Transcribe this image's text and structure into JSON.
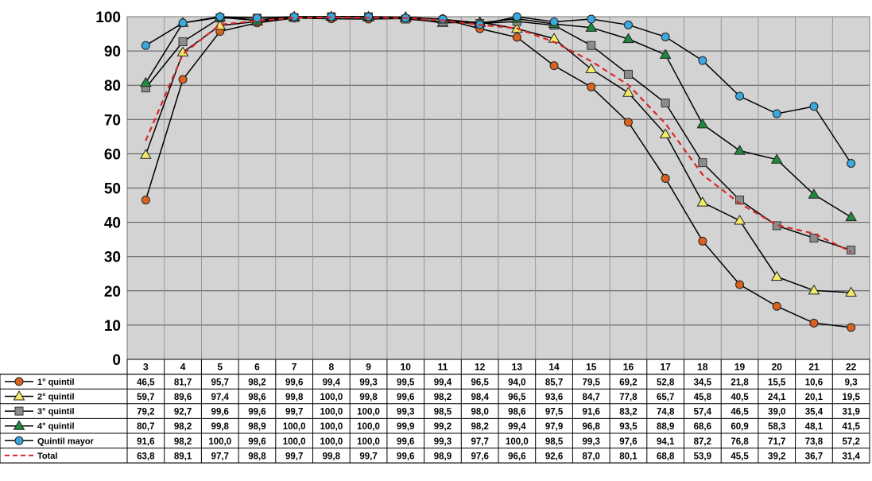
{
  "chart_data": {
    "type": "line",
    "title": "",
    "xlabel": "",
    "ylabel": "",
    "ylim": [
      0,
      100
    ],
    "yticks": [
      0,
      10,
      20,
      30,
      40,
      50,
      60,
      70,
      80,
      90,
      100
    ],
    "grid": true,
    "legend_placement": "bottom-left data table",
    "categories": [
      "3",
      "4",
      "5",
      "6",
      "7",
      "8",
      "9",
      "10",
      "11",
      "12",
      "13",
      "14",
      "15",
      "16",
      "17",
      "18",
      "19",
      "20",
      "21",
      "22"
    ],
    "series": [
      {
        "name": "1° quintil",
        "marker": "circle",
        "color": "#d9621f",
        "values": [
          46.5,
          81.7,
          95.7,
          98.2,
          99.6,
          99.4,
          99.3,
          99.5,
          99.4,
          96.5,
          94.0,
          85.7,
          79.5,
          69.2,
          52.8,
          34.5,
          21.8,
          15.5,
          10.6,
          9.3
        ],
        "labels": [
          "46,5",
          "81,7",
          "95,7",
          "98,2",
          "99,6",
          "99,4",
          "99,3",
          "99,5",
          "99,4",
          "96,5",
          "94,0",
          "85,7",
          "79,5",
          "69,2",
          "52,8",
          "34,5",
          "21,8",
          "15,5",
          "10,6",
          "9,3"
        ]
      },
      {
        "name": "2° quintil",
        "marker": "triangle",
        "color": "#f2ec6a",
        "values": [
          59.7,
          89.6,
          97.4,
          98.6,
          99.8,
          100.0,
          99.8,
          99.6,
          98.2,
          98.4,
          96.5,
          93.6,
          84.7,
          77.8,
          65.7,
          45.8,
          40.5,
          24.1,
          20.1,
          19.5
        ],
        "labels": [
          "59,7",
          "89,6",
          "97,4",
          "98,6",
          "99,8",
          "100,0",
          "99,8",
          "99,6",
          "98,2",
          "98,4",
          "96,5",
          "93,6",
          "84,7",
          "77,8",
          "65,7",
          "45,8",
          "40,5",
          "24,1",
          "20,1",
          "19,5"
        ]
      },
      {
        "name": "3° quintil",
        "marker": "square",
        "color": "#8c8c8c",
        "values": [
          79.2,
          92.7,
          99.6,
          99.6,
          99.7,
          100.0,
          100.0,
          99.3,
          98.5,
          98.0,
          98.6,
          97.5,
          91.6,
          83.2,
          74.8,
          57.4,
          46.5,
          39.0,
          35.4,
          31.9
        ],
        "labels": [
          "79,2",
          "92,7",
          "99,6",
          "99,6",
          "99,7",
          "100,0",
          "100,0",
          "99,3",
          "98,5",
          "98,0",
          "98,6",
          "97,5",
          "91,6",
          "83,2",
          "74,8",
          "57,4",
          "46,5",
          "39,0",
          "35,4",
          "31,9"
        ]
      },
      {
        "name": "4° quintil",
        "marker": "triangle",
        "color": "#1e8a3c",
        "values": [
          80.7,
          98.2,
          99.8,
          98.9,
          100.0,
          100.0,
          100.0,
          99.9,
          99.2,
          98.2,
          99.4,
          97.9,
          96.8,
          93.5,
          88.9,
          68.6,
          60.9,
          58.3,
          48.1,
          41.5
        ],
        "labels": [
          "80,7",
          "98,2",
          "99,8",
          "98,9",
          "100,0",
          "100,0",
          "100,0",
          "99,9",
          "99,2",
          "98,2",
          "99,4",
          "97,9",
          "96,8",
          "93,5",
          "88,9",
          "68,6",
          "60,9",
          "58,3",
          "48,1",
          "41,5"
        ]
      },
      {
        "name": "Quintil mayor",
        "marker": "circle",
        "color": "#3aa7dd",
        "values": [
          91.6,
          98.2,
          100.0,
          99.6,
          100.0,
          100.0,
          100.0,
          99.6,
          99.3,
          97.7,
          100.0,
          98.5,
          99.3,
          97.6,
          94.1,
          87.2,
          76.8,
          71.7,
          73.8,
          57.2
        ],
        "labels": [
          "91,6",
          "98,2",
          "100,0",
          "99,6",
          "100,0",
          "100,0",
          "100,0",
          "99,6",
          "99,3",
          "97,7",
          "100,0",
          "98,5",
          "99,3",
          "97,6",
          "94,1",
          "87,2",
          "76,8",
          "71,7",
          "73,8",
          "57,2"
        ]
      },
      {
        "name": "Total",
        "marker": "none",
        "dashed": true,
        "color": "#d9262a",
        "values": [
          63.8,
          89.1,
          97.7,
          98.8,
          99.7,
          99.8,
          99.7,
          99.6,
          98.9,
          97.6,
          96.6,
          92.6,
          87.0,
          80.1,
          68.8,
          53.9,
          45.5,
          39.2,
          36.7,
          31.4
        ],
        "labels": [
          "63,8",
          "89,1",
          "97,7",
          "98,8",
          "99,7",
          "99,8",
          "99,7",
          "99,6",
          "98,9",
          "97,6",
          "96,6",
          "92,6",
          "87,0",
          "80,1",
          "68,8",
          "53,9",
          "45,5",
          "39,2",
          "36,7",
          "31,4"
        ]
      }
    ]
  }
}
